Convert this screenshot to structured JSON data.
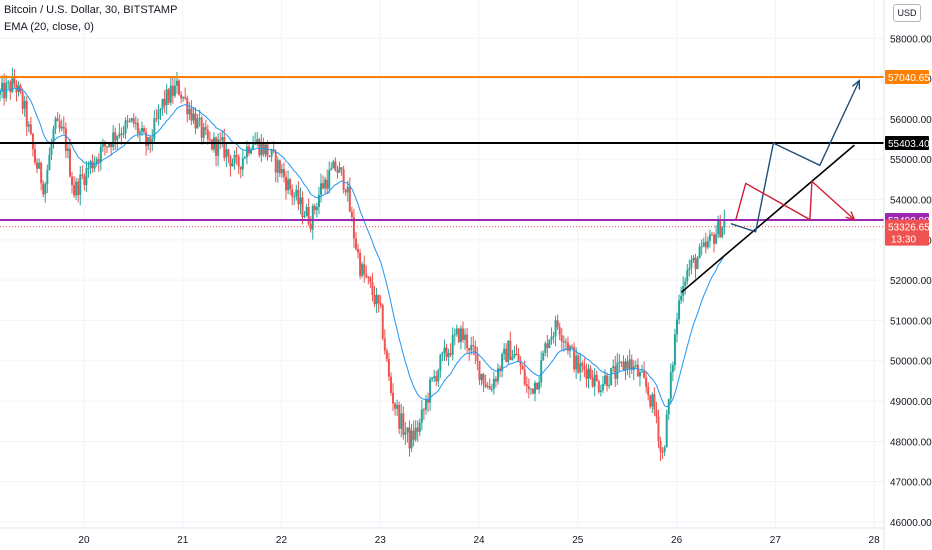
{
  "header": {
    "symbol": "Bitcoin / U.S. Dollar, 30, BITSTAMP",
    "indicator": "EMA (20, close, 0)",
    "currency": "USD"
  },
  "chart_data": {
    "type": "candlestick",
    "title": "Bitcoin / U.S. Dollar, 30, BITSTAMP",
    "x_ticks": [
      "20",
      "21",
      "22",
      "23",
      "24",
      "25",
      "26",
      "27",
      "28"
    ],
    "x_range_days": [
      19.15,
      28.1
    ],
    "y_ticks": [
      46000,
      47000,
      48000,
      49000,
      50000,
      51000,
      52000,
      53000,
      54000,
      55000,
      56000,
      57000,
      58000
    ],
    "y_range": [
      45850,
      58950
    ],
    "price_path": [
      [
        19.15,
        56600
      ],
      [
        19.3,
        56900
      ],
      [
        19.4,
        56200
      ],
      [
        19.5,
        55000
      ],
      [
        19.6,
        54300
      ],
      [
        19.7,
        55800
      ],
      [
        19.8,
        55600
      ],
      [
        19.9,
        54200
      ],
      [
        20.05,
        54800
      ],
      [
        20.2,
        55300
      ],
      [
        20.35,
        55700
      ],
      [
        20.5,
        55900
      ],
      [
        20.65,
        55300
      ],
      [
        20.8,
        56400
      ],
      [
        20.95,
        56800
      ],
      [
        21.1,
        56100
      ],
      [
        21.25,
        55400
      ],
      [
        21.4,
        55300
      ],
      [
        21.55,
        54800
      ],
      [
        21.7,
        55500
      ],
      [
        21.85,
        55200
      ],
      [
        22.0,
        54700
      ],
      [
        22.1,
        54200
      ],
      [
        22.2,
        53800
      ],
      [
        22.3,
        53500
      ],
      [
        22.4,
        54300
      ],
      [
        22.55,
        54800
      ],
      [
        22.65,
        54400
      ],
      [
        22.72,
        53300
      ],
      [
        22.8,
        52300
      ],
      [
        22.9,
        51800
      ],
      [
        23.0,
        51200
      ],
      [
        23.1,
        49300
      ],
      [
        23.2,
        48500
      ],
      [
        23.3,
        48000
      ],
      [
        23.4,
        48400
      ],
      [
        23.5,
        49300
      ],
      [
        23.6,
        49900
      ],
      [
        23.7,
        50300
      ],
      [
        23.8,
        50700
      ],
      [
        23.9,
        50400
      ],
      [
        24.0,
        49800
      ],
      [
        24.1,
        49300
      ],
      [
        24.2,
        49800
      ],
      [
        24.3,
        50300
      ],
      [
        24.4,
        50000
      ],
      [
        24.5,
        49200
      ],
      [
        24.6,
        49600
      ],
      [
        24.7,
        50600
      ],
      [
        24.8,
        50900
      ],
      [
        24.9,
        50400
      ],
      [
        25.0,
        49800
      ],
      [
        25.1,
        49800
      ],
      [
        25.2,
        49400
      ],
      [
        25.3,
        49600
      ],
      [
        25.4,
        49700
      ],
      [
        25.5,
        50000
      ],
      [
        25.6,
        49700
      ],
      [
        25.7,
        49300
      ],
      [
        25.8,
        48600
      ],
      [
        25.85,
        47500
      ],
      [
        25.9,
        48500
      ],
      [
        25.95,
        49700
      ],
      [
        26.0,
        51000
      ],
      [
        26.05,
        51900
      ],
      [
        26.1,
        52200
      ],
      [
        26.2,
        52500
      ],
      [
        26.3,
        52800
      ],
      [
        26.4,
        53200
      ],
      [
        26.5,
        53500
      ]
    ],
    "ema_period": 20,
    "levels": [
      {
        "value": 57040.65,
        "label": "57040.65",
        "color": "#ff8000"
      },
      {
        "value": 55403.4,
        "label": "55403.40",
        "color": "#000000"
      },
      {
        "value": 53490.88,
        "label": "53490.88",
        "color": "#9c27b0"
      }
    ],
    "last_price": {
      "value": 53326.65,
      "label": "53326.65",
      "timer": "13:30",
      "color": "#ef5350"
    },
    "colors": {
      "up": "#26a69a",
      "down": "#ef5350",
      "ema": "#2196f3",
      "trend": "#000000",
      "projection_up": "#1e4f79",
      "projection_down": "#cf1e3a"
    },
    "trendline": [
      [
        26.05,
        51700
      ],
      [
        27.8,
        55350
      ]
    ],
    "projection_up": [
      [
        26.55,
        53400
      ],
      [
        26.8,
        53200
      ],
      [
        26.98,
        55400
      ],
      [
        27.45,
        54850
      ],
      [
        27.85,
        56950
      ]
    ],
    "projection_down": [
      [
        26.6,
        53500
      ],
      [
        26.7,
        54400
      ],
      [
        27.35,
        53500
      ],
      [
        27.37,
        54450
      ],
      [
        27.8,
        53500
      ]
    ]
  }
}
